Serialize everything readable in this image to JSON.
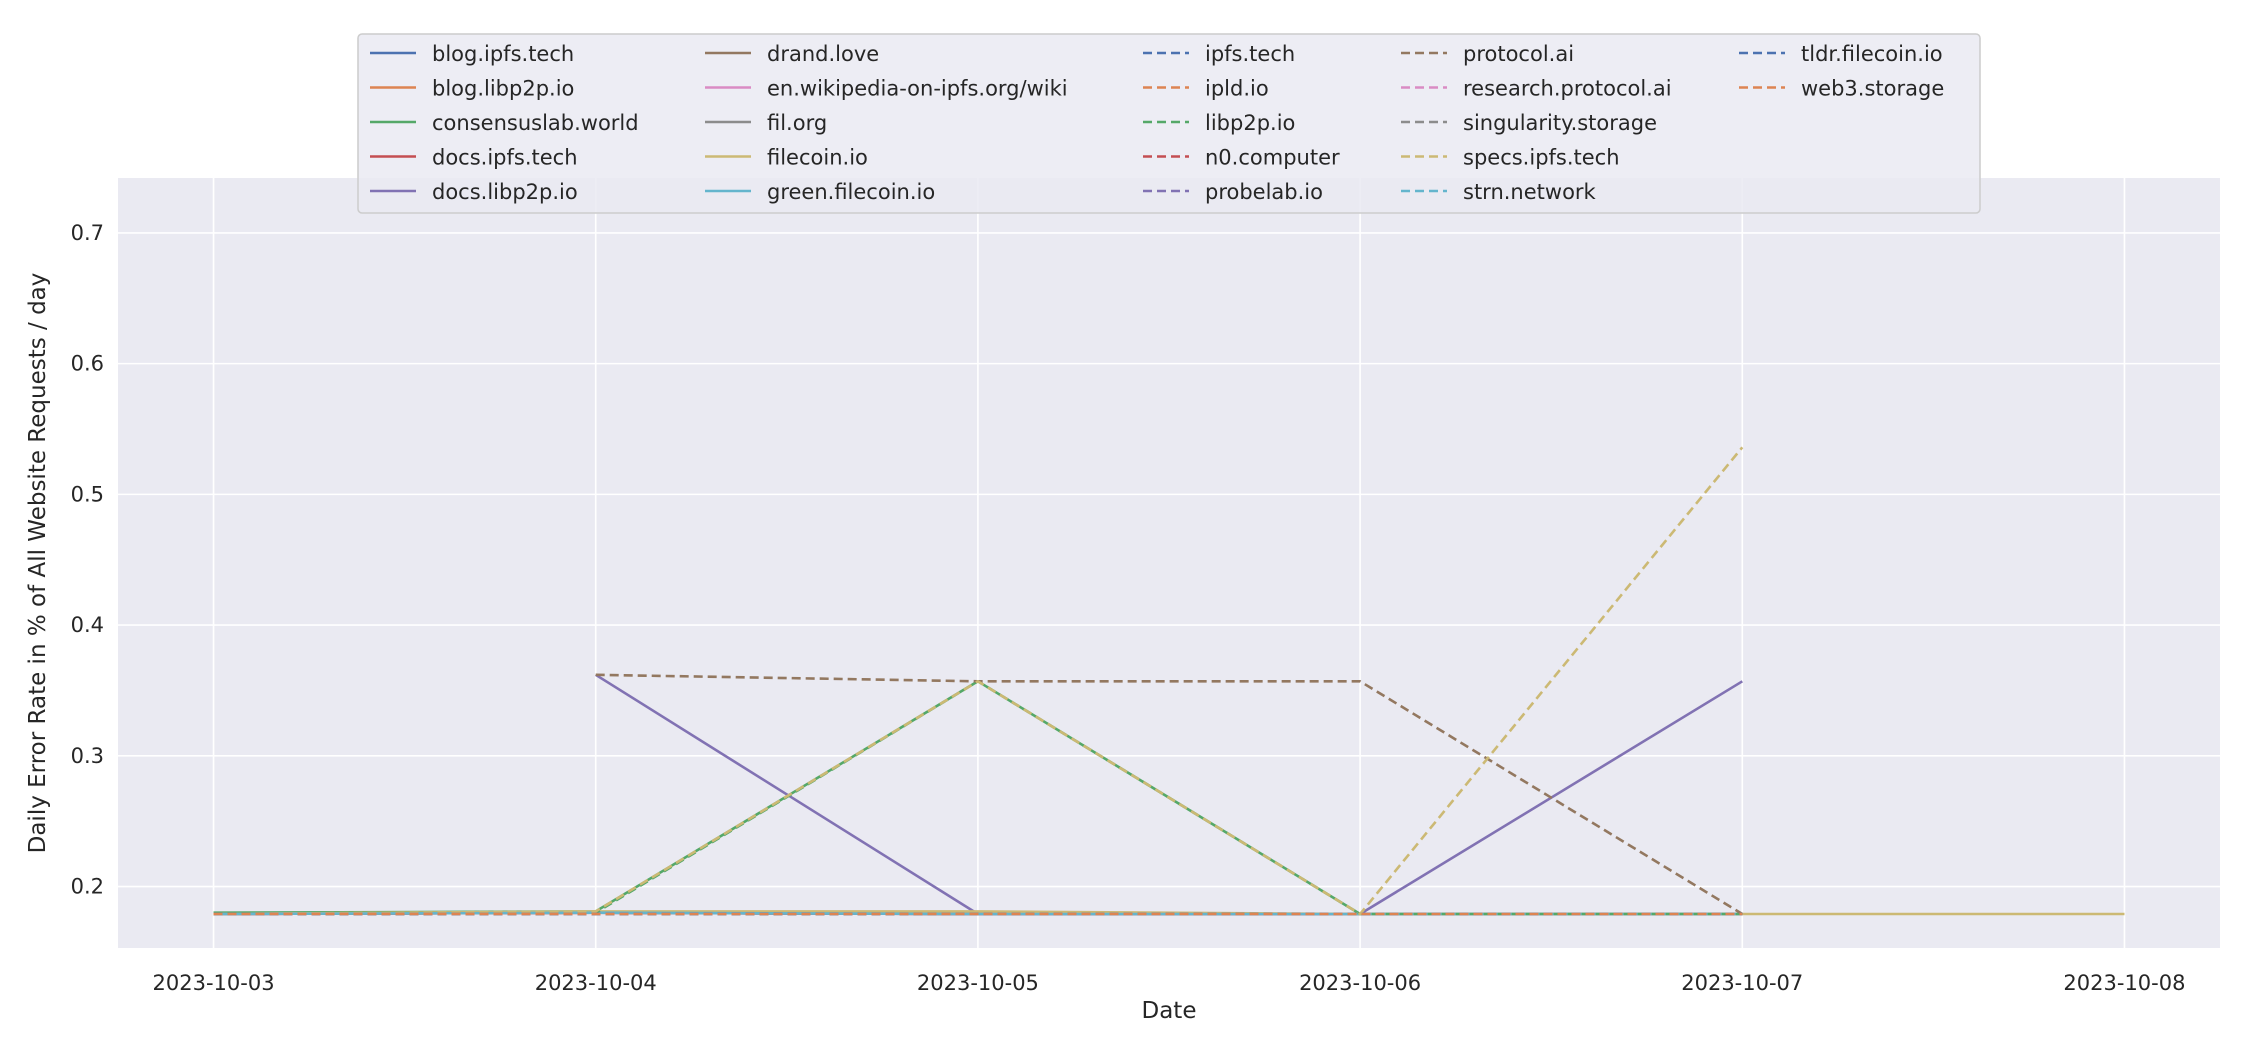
{
  "chart_data": {
    "type": "line",
    "xlabel": "Date",
    "ylabel": "Daily Error Rate in % of All Website Requests / day",
    "x": [
      "2023-10-03",
      "2023-10-04",
      "2023-10-05",
      "2023-10-06",
      "2023-10-07",
      "2023-10-08"
    ],
    "x_ticks": [
      "2023-10-03",
      "2023-10-04",
      "2023-10-05",
      "2023-10-06",
      "2023-10-07",
      "2023-10-08"
    ],
    "y_ticks": [
      0.2,
      0.3,
      0.4,
      0.5,
      0.6,
      0.7
    ],
    "ylim": [
      0.153,
      0.742
    ],
    "xlim": [
      "2023-10-02T18:00",
      "2023-10-08T06:00"
    ],
    "grid": true,
    "legend_position": "top-center",
    "background": "#eaeaf2",
    "series": [
      {
        "name": "blog.ipfs.tech",
        "color": "#4c72b0",
        "dash": "solid",
        "values": [
          0.179,
          0.18,
          0.179,
          0.179,
          0.179,
          null
        ]
      },
      {
        "name": "blog.libp2p.io",
        "color": "#dd8452",
        "dash": "solid",
        "values": [
          0.179,
          0.18,
          0.179,
          0.179,
          0.179,
          null
        ]
      },
      {
        "name": "consensuslab.world",
        "color": "#55a868",
        "dash": "solid",
        "values": [
          0.18,
          0.181,
          0.357,
          0.179,
          0.179,
          null
        ]
      },
      {
        "name": "docs.ipfs.tech",
        "color": "#c44e52",
        "dash": "solid",
        "values": [
          0.179,
          0.18,
          0.179,
          0.179,
          0.179,
          null
        ]
      },
      {
        "name": "docs.libp2p.io",
        "color": "#8172b3",
        "dash": "solid",
        "values": [
          null,
          0.362,
          0.179,
          0.179,
          0.357,
          null
        ]
      },
      {
        "name": "drand.love",
        "color": "#937860",
        "dash": "solid",
        "values": [
          0.179,
          0.18,
          0.179,
          0.179,
          0.179,
          null
        ]
      },
      {
        "name": "en.wikipedia-on-ipfs.org/wiki",
        "color": "#da8bc3",
        "dash": "solid",
        "values": [
          0.179,
          0.18,
          0.179,
          0.179,
          0.179,
          null
        ]
      },
      {
        "name": "fil.org",
        "color": "#8c8c8c",
        "dash": "solid",
        "values": [
          0.179,
          0.18,
          0.179,
          0.179,
          0.179,
          null
        ]
      },
      {
        "name": "filecoin.io",
        "color": "#ccb974",
        "dash": "solid",
        "values": [
          0.179,
          0.181,
          0.181,
          0.179,
          0.179,
          0.179
        ]
      },
      {
        "name": "green.filecoin.io",
        "color": "#64b5cd",
        "dash": "solid",
        "values": [
          0.179,
          0.18,
          0.179,
          0.179,
          0.179,
          null
        ]
      },
      {
        "name": "ipfs.tech",
        "color": "#4c72b0",
        "dash": "dashed",
        "values": [
          0.179,
          0.179,
          0.179,
          0.179,
          0.179,
          null
        ]
      },
      {
        "name": "ipld.io",
        "color": "#dd8452",
        "dash": "dashed",
        "values": [
          0.179,
          0.179,
          0.179,
          0.179,
          0.179,
          null
        ]
      },
      {
        "name": "libp2p.io",
        "color": "#55a868",
        "dash": "dashed",
        "values": [
          0.179,
          0.18,
          0.357,
          0.179,
          0.179,
          null
        ]
      },
      {
        "name": "n0.computer",
        "color": "#c44e52",
        "dash": "dashed",
        "values": [
          0.179,
          0.179,
          0.179,
          0.179,
          0.179,
          null
        ]
      },
      {
        "name": "probelab.io",
        "color": "#8172b3",
        "dash": "dashed",
        "values": [
          0.179,
          0.179,
          0.179,
          0.179,
          0.179,
          null
        ]
      },
      {
        "name": "protocol.ai",
        "color": "#937860",
        "dash": "dashed",
        "values": [
          null,
          0.362,
          0.357,
          0.357,
          0.179,
          null
        ]
      },
      {
        "name": "research.protocol.ai",
        "color": "#da8bc3",
        "dash": "dashed",
        "values": [
          0.179,
          0.179,
          0.179,
          0.179,
          0.179,
          null
        ]
      },
      {
        "name": "singularity.storage",
        "color": "#8c8c8c",
        "dash": "dashed",
        "values": [
          0.179,
          0.179,
          0.179,
          0.179,
          0.179,
          null
        ]
      },
      {
        "name": "specs.ipfs.tech",
        "color": "#ccb974",
        "dash": "dashed",
        "values": [
          0.179,
          0.181,
          0.357,
          0.179,
          0.536,
          null
        ]
      },
      {
        "name": "strn.network",
        "color": "#64b5cd",
        "dash": "dashed",
        "values": [
          0.179,
          0.179,
          0.179,
          0.179,
          0.179,
          null
        ]
      },
      {
        "name": "tldr.filecoin.io",
        "color": "#4c72b0",
        "dash": "dashed",
        "values": [
          0.179,
          0.179,
          0.179,
          0.179,
          0.179,
          null
        ]
      },
      {
        "name": "web3.storage",
        "color": "#dd8452",
        "dash": "dashed",
        "values": [
          0.179,
          0.179,
          0.179,
          0.179,
          0.179,
          null
        ]
      }
    ]
  }
}
